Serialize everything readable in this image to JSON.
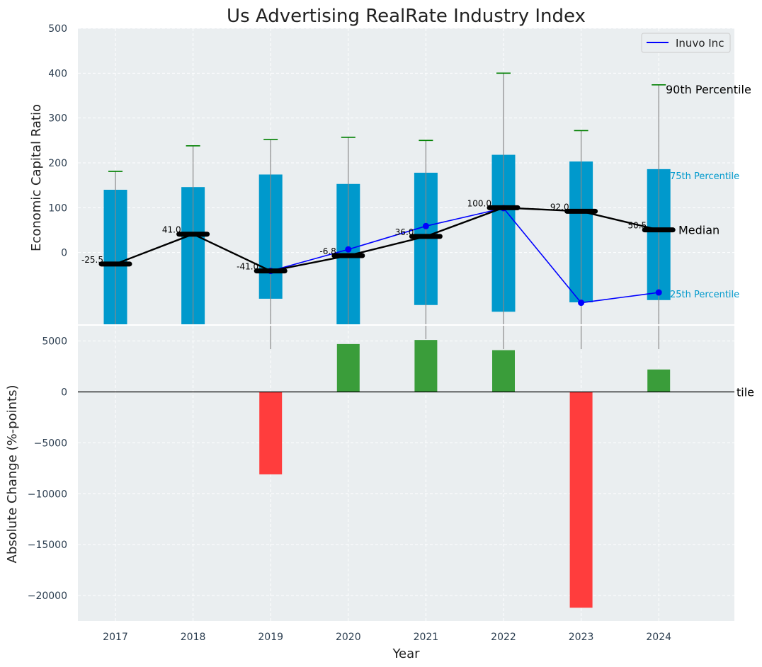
{
  "chart_data": [
    {
      "type": "bar",
      "title": "Us Advertising RealRate Industry Index",
      "ylabel": "Economic Capital Ratio",
      "xlabel": "",
      "ylim": [
        -160,
        500
      ],
      "yticks": [
        0,
        100,
        200,
        300,
        400,
        500
      ],
      "grid": true,
      "legend_position": "top-right",
      "categories": [
        "2017",
        "2018",
        "2019",
        "2020",
        "2021",
        "2022",
        "2023",
        "2024"
      ],
      "box_25th": [
        -160,
        -160,
        -103,
        -160,
        -117,
        -132,
        -111,
        -106
      ],
      "box_75th": [
        140,
        146,
        174,
        153,
        178,
        218,
        203,
        186
      ],
      "whisker_90th": [
        181,
        238,
        252,
        257,
        250,
        400,
        272,
        374
      ],
      "median": [
        -25.5,
        41.0,
        -41.0,
        -6.8,
        36.0,
        100.0,
        92.0,
        50.5
      ],
      "median_labels": [
        "-25.5",
        "41.0",
        "-41.0",
        "-6.8",
        "36.0",
        "100.0",
        "92.0",
        "50.5"
      ],
      "series": [
        {
          "name": "Inuvo Inc",
          "color": "#0000ff",
          "x": [
            "2019",
            "2020",
            "2021",
            "2022",
            "2023",
            "2024"
          ],
          "values": [
            -41,
            7,
            59,
            99,
            -112,
            -89
          ]
        }
      ],
      "annotations": {
        "p90": "90th Percentile",
        "p75": "75th Percentile",
        "median": "Median",
        "p25": "25th Percentile"
      },
      "colors": {
        "box": "#0099cc",
        "whisker": "#888888",
        "whisker_cap": "#008000",
        "median_line": "#000000",
        "panel_bg": "#eaeef0"
      }
    },
    {
      "type": "bar",
      "ylabel": "Absolute Change (%-points)",
      "xlabel": "Year",
      "ylim": [
        -22500,
        6500
      ],
      "yticks": [
        -20000,
        -15000,
        -10000,
        -5000,
        0,
        5000
      ],
      "ytick_labels": [
        "−20000",
        "−15000",
        "−10000",
        "−5000",
        "0",
        "5000"
      ],
      "grid": true,
      "categories": [
        "2017",
        "2018",
        "2019",
        "2020",
        "2021",
        "2022",
        "2023",
        "2024"
      ],
      "values": [
        0,
        0,
        -8100,
        4700,
        5100,
        4100,
        -21200,
        2200
      ],
      "clipped_annotation": "tile",
      "colors": {
        "positive": "#3a9d3a",
        "negative": "#ff3d3d",
        "zero_line": "#000000"
      }
    }
  ]
}
